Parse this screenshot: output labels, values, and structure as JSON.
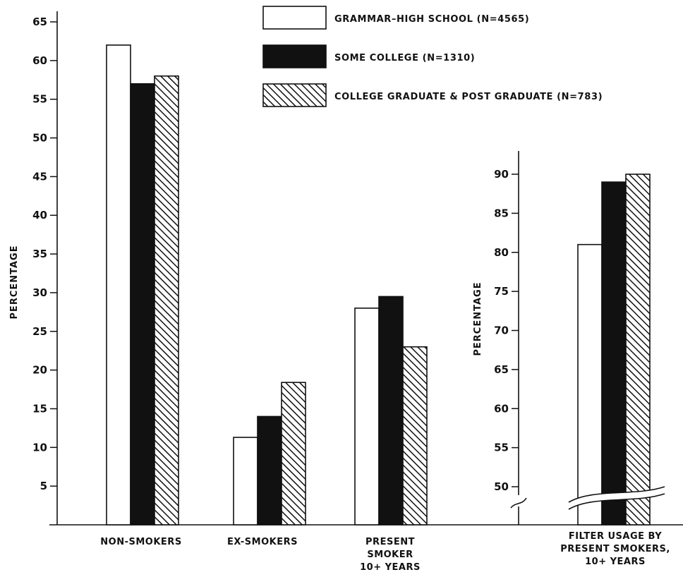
{
  "chart_data": [
    {
      "type": "bar",
      "ylabel": "PERCENTAGE",
      "ylim": [
        0,
        65
      ],
      "yticks": [
        5,
        10,
        15,
        20,
        25,
        30,
        35,
        40,
        45,
        50,
        55,
        60,
        65
      ],
      "categories": [
        [
          "NON-SMOKERS"
        ],
        [
          "EX-SMOKERS"
        ],
        [
          "PRESENT",
          "SMOKER",
          "10+ YEARS"
        ]
      ],
      "series": [
        {
          "name": "GRAMMAR-HIGH SCHOOL (N=4565)",
          "values": [
            62,
            11.3,
            28
          ]
        },
        {
          "name": "SOME COLLEGE (N=1310)",
          "values": [
            57,
            14,
            29.5
          ]
        },
        {
          "name": "COLLEGE GRADUATE & POST GRADUATE (N=783)",
          "values": [
            58,
            18.4,
            23
          ]
        }
      ],
      "legend": "top-right",
      "grid": false
    },
    {
      "type": "bar",
      "ylabel": "PERCENTAGE",
      "ylim": [
        45,
        93
      ],
      "axis_break": true,
      "yticks": [
        50,
        55,
        60,
        65,
        70,
        75,
        80,
        85,
        90
      ],
      "categories": [
        [
          "FILTER USAGE BY",
          "PRESENT SMOKERS,",
          "10+ YEARS"
        ]
      ],
      "series": [
        {
          "name": "GRAMMAR-HIGH SCHOOL (N=4565)",
          "values": [
            81
          ]
        },
        {
          "name": "SOME COLLEGE (N=1310)",
          "values": [
            89
          ]
        },
        {
          "name": "COLLEGE GRADUATE & POST GRADUATE (N=783)",
          "values": [
            90
          ]
        }
      ],
      "grid": false
    }
  ],
  "legend": {
    "entries": [
      {
        "label": "GRAMMAR–HIGH SCHOOL (N=4565)",
        "fill": "white"
      },
      {
        "label": "SOME COLLEGE (N=1310)",
        "fill": "black"
      },
      {
        "label": "COLLEGE GRADUATE & POST GRADUATE (N=783)",
        "fill": "hatch"
      }
    ]
  },
  "colors": {
    "ink": "#111111",
    "paper": "#ffffff"
  }
}
